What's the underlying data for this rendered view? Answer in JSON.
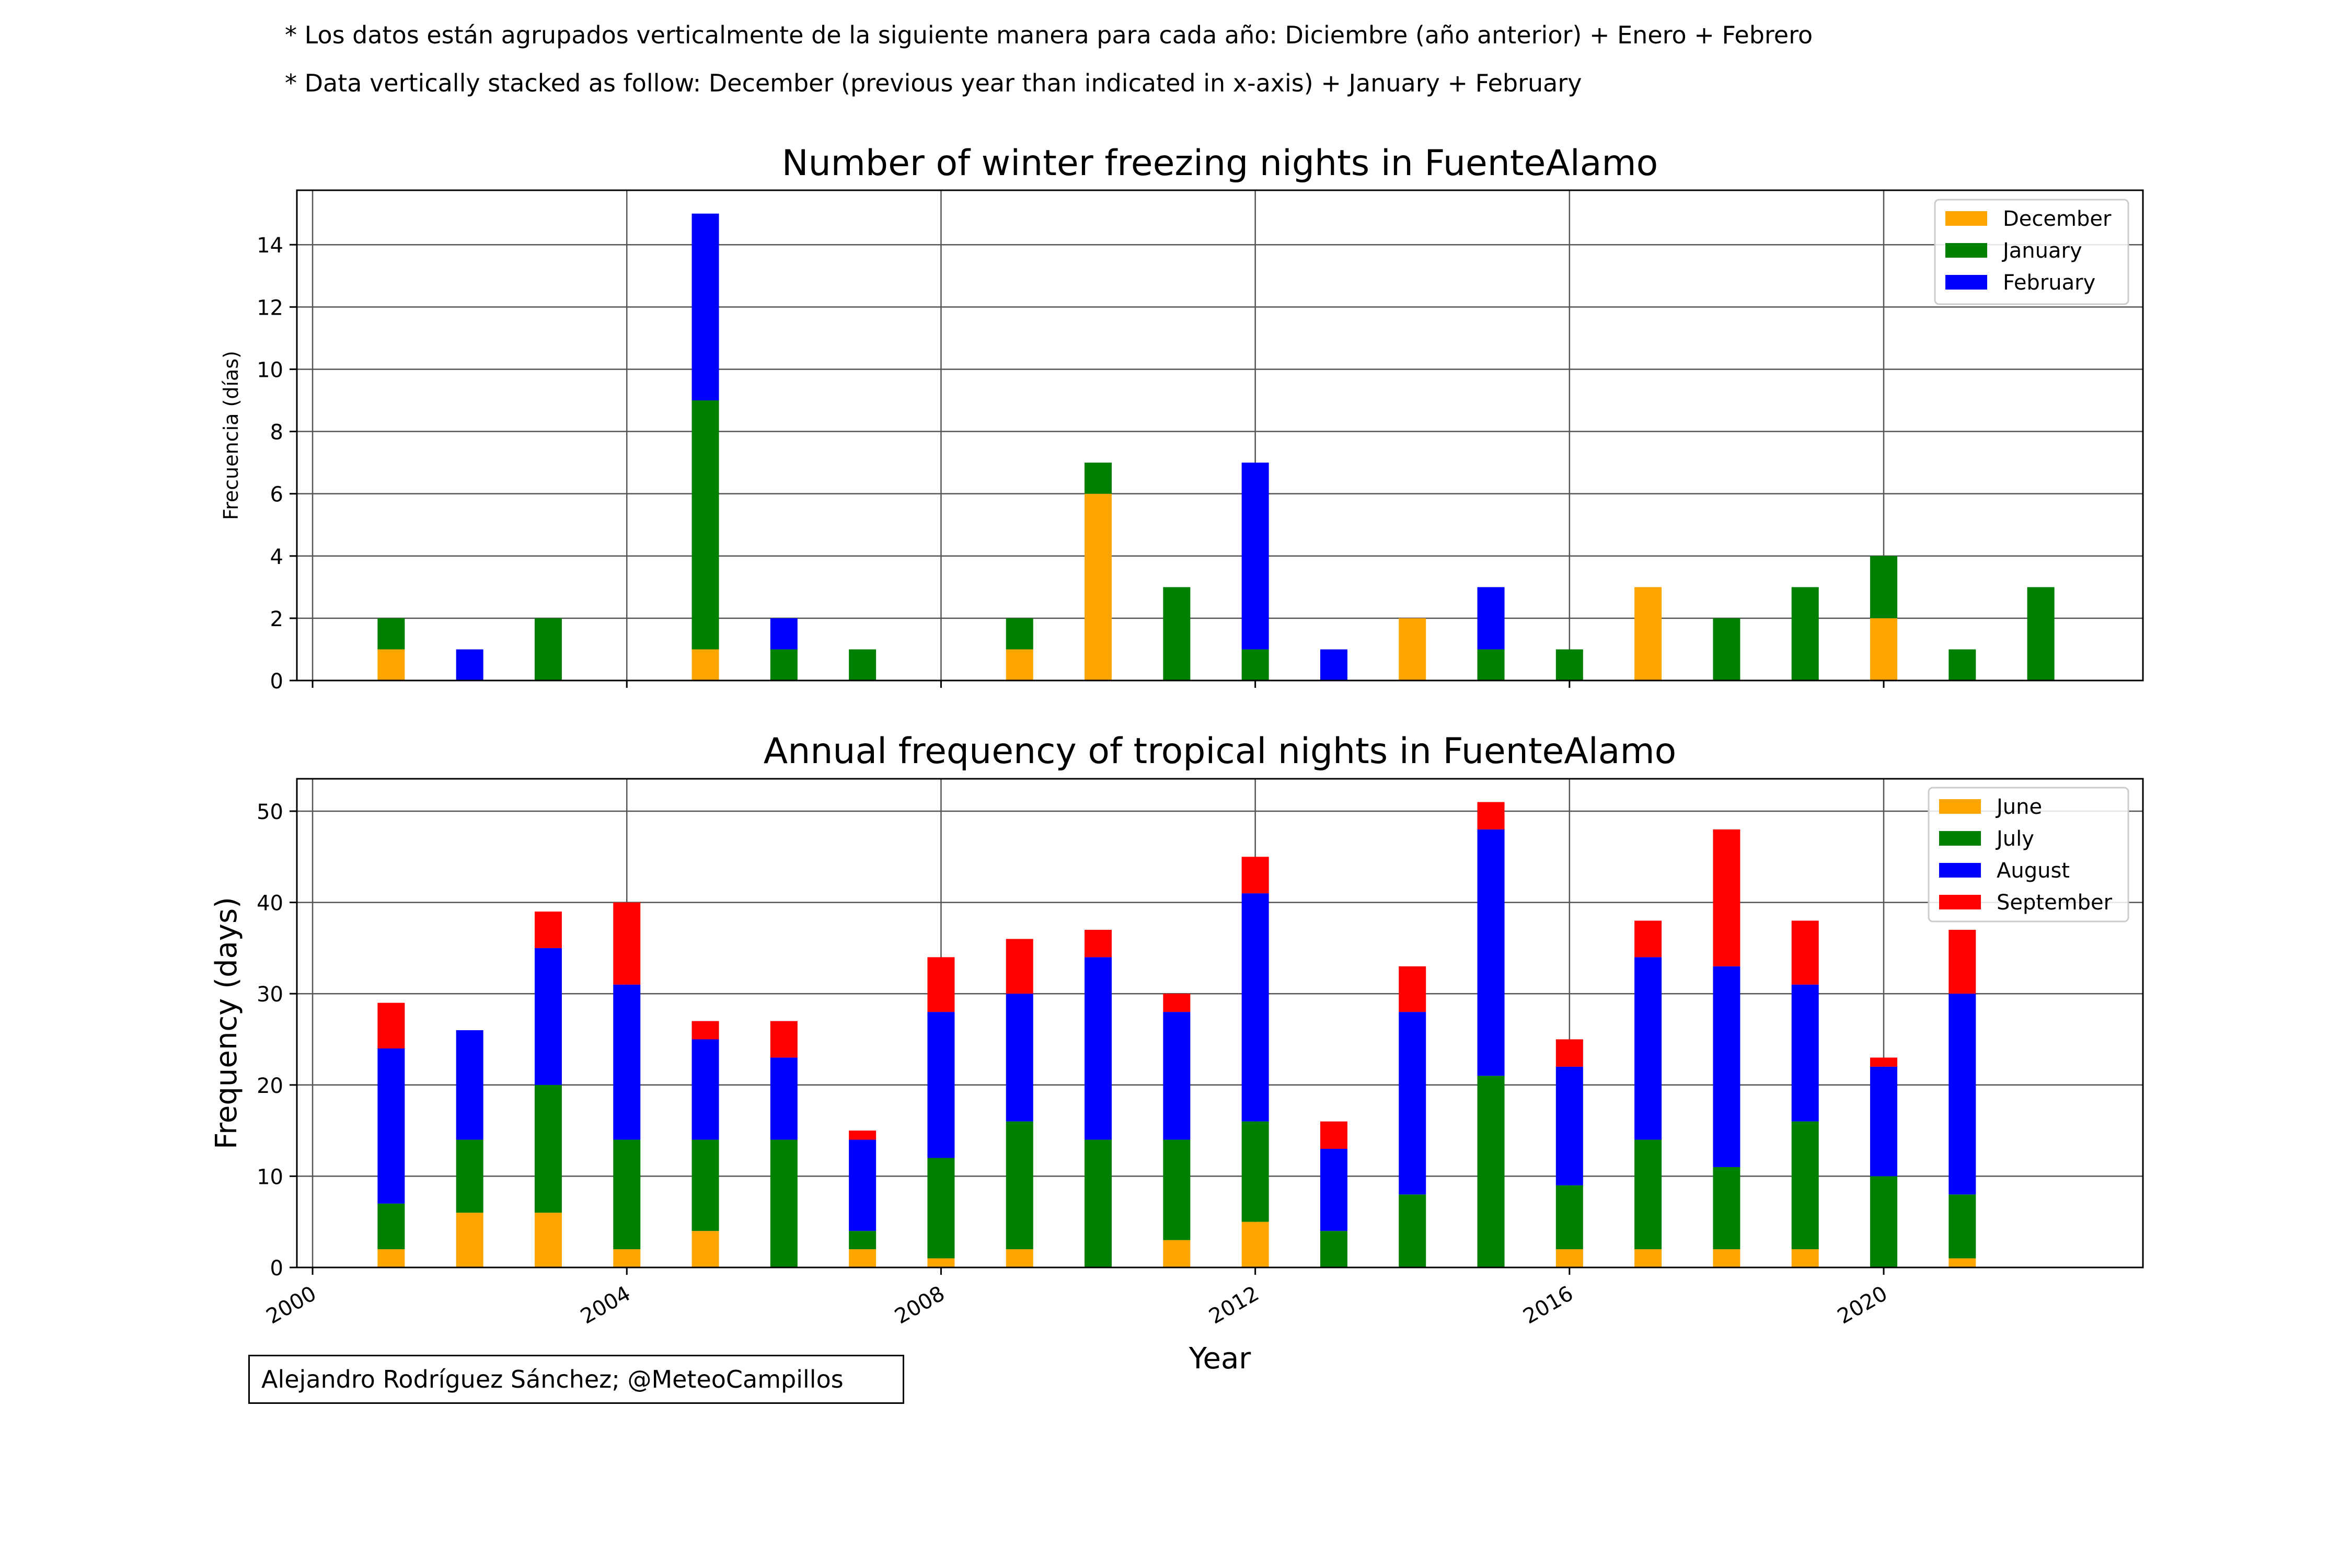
{
  "notes": {
    "line1": "* Los datos están agrupados verticalmente de la siguiente manera para cada año: Diciembre (año anterior) + Enero  + Febrero",
    "line2": "* Data vertically stacked as follow: December (previous year than indicated in x-axis) + January  + February"
  },
  "credit": "Alejandro Rodríguez Sánchez; @MeteoCampillos",
  "chart_data": [
    {
      "type": "bar",
      "stacked": true,
      "title": "Number of winter freezing nights in FuenteAlamo",
      "xlabel": "",
      "ylabel": "Frecuencia (días)",
      "x": [
        2001,
        2002,
        2003,
        2004,
        2005,
        2006,
        2007,
        2008,
        2009,
        2010,
        2011,
        2012,
        2013,
        2014,
        2015,
        2016,
        2017,
        2018,
        2019,
        2020,
        2021,
        2022
      ],
      "series": [
        {
          "name": "December",
          "color": "#FFA500",
          "values": [
            1,
            0,
            0,
            0,
            1,
            0,
            0,
            0,
            1,
            6,
            0,
            0,
            0,
            2,
            0,
            0,
            3,
            0,
            0,
            2,
            0,
            0
          ]
        },
        {
          "name": "January",
          "color": "#008000",
          "values": [
            1,
            0,
            2,
            0,
            8,
            1,
            1,
            0,
            1,
            1,
            3,
            1,
            0,
            0,
            1,
            1,
            0,
            2,
            3,
            2,
            1,
            3
          ]
        },
        {
          "name": "February",
          "color": "#0000FF",
          "values": [
            0,
            1,
            0,
            0,
            6,
            1,
            0,
            0,
            0,
            0,
            0,
            6,
            1,
            0,
            2,
            0,
            0,
            0,
            0,
            0,
            0,
            0
          ]
        }
      ],
      "xlim": [
        1999.8,
        2023.3
      ],
      "ylim": [
        0,
        15.75
      ],
      "yticks": [
        0,
        2,
        4,
        6,
        8,
        10,
        12,
        14
      ],
      "xtick_values": [
        2000,
        2004,
        2008,
        2012,
        2016,
        2020
      ],
      "xtick_labels": [],
      "grid": true,
      "legend_position": "top-right"
    },
    {
      "type": "bar",
      "stacked": true,
      "title": "Annual frequency of tropical nights in FuenteAlamo",
      "xlabel": "Year",
      "ylabel": "Frequency (days)",
      "x": [
        2001,
        2002,
        2003,
        2004,
        2005,
        2006,
        2007,
        2008,
        2009,
        2010,
        2011,
        2012,
        2013,
        2014,
        2015,
        2016,
        2017,
        2018,
        2019,
        2020,
        2021
      ],
      "series": [
        {
          "name": "June",
          "color": "#FFA500",
          "values": [
            2,
            6,
            6,
            2,
            4,
            0,
            2,
            1,
            2,
            0,
            3,
            5,
            0,
            0,
            0,
            2,
            2,
            2,
            2,
            0,
            1
          ]
        },
        {
          "name": "July",
          "color": "#008000",
          "values": [
            5,
            8,
            14,
            12,
            10,
            14,
            2,
            11,
            14,
            14,
            11,
            11,
            4,
            8,
            21,
            7,
            12,
            9,
            14,
            10,
            7
          ]
        },
        {
          "name": "August",
          "color": "#0000FF",
          "values": [
            17,
            12,
            15,
            17,
            11,
            9,
            10,
            16,
            14,
            20,
            14,
            25,
            9,
            20,
            27,
            13,
            20,
            22,
            15,
            12,
            22
          ]
        },
        {
          "name": "September",
          "color": "#FF0000",
          "values": [
            5,
            0,
            4,
            9,
            2,
            4,
            1,
            6,
            6,
            3,
            2,
            4,
            3,
            5,
            3,
            3,
            4,
            15,
            7,
            1,
            7
          ]
        }
      ],
      "xlim": [
        1999.8,
        2023.3
      ],
      "ylim": [
        0,
        53.55
      ],
      "yticks": [
        0,
        10,
        20,
        30,
        40,
        50
      ],
      "xtick_values": [
        2000,
        2004,
        2008,
        2012,
        2016,
        2020
      ],
      "xtick_labels": [
        "2000",
        "2004",
        "2008",
        "2012",
        "2016",
        "2020"
      ],
      "grid": true,
      "legend_position": "top-right"
    }
  ]
}
